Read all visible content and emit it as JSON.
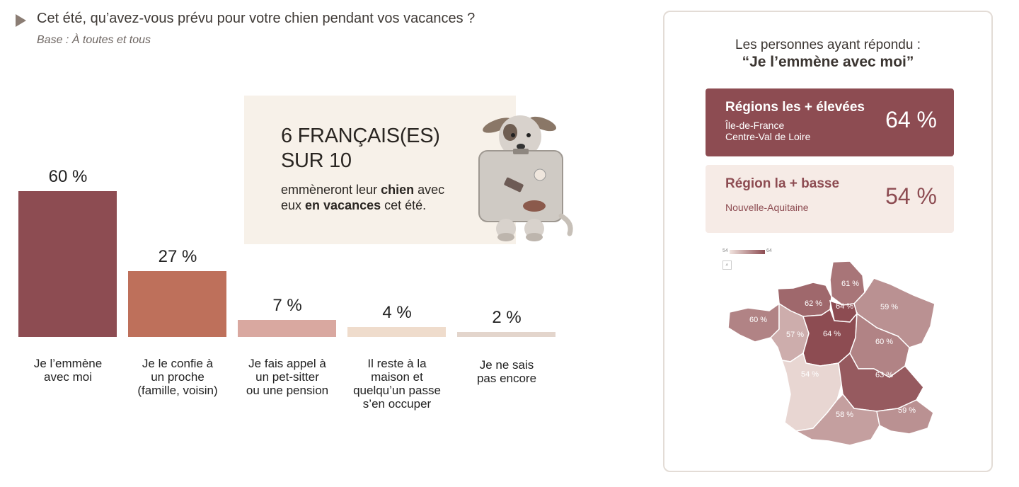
{
  "question": {
    "title": "Cet été, qu’avez-vous prévu pour votre chien pendant vos vacances ?",
    "base": "Base : À toutes et tous"
  },
  "chart_data": {
    "type": "bar",
    "categories": [
      "Je l’emmène\navec moi",
      "Je le confie à\nun proche\n(famille, voisin)",
      "Je fais appel à\nun pet-sitter\nou une pension",
      "Il reste à la\nmaison et\nquelqu’un passe\ns’en occuper",
      "Je ne sais\npas encore"
    ],
    "values": [
      60,
      27,
      7,
      4,
      2
    ],
    "value_labels": [
      "60 %",
      "27 %",
      "7 %",
      "4 %",
      "2 %"
    ],
    "colors": [
      "#8d4c52",
      "#be705b",
      "#d9a8a0",
      "#efdccc",
      "#e3d5cc"
    ],
    "ylim": [
      0,
      60
    ]
  },
  "callout": {
    "big_line1": "6 FRANÇAIS(ES)",
    "big_line2": "SUR 10",
    "small_1": "emmèneront leur ",
    "small_bold1": "chien",
    "small_2": " avec eux ",
    "small_bold2": "en vacances",
    "small_3": " cet été."
  },
  "panel": {
    "heading1": "Les personnes ayant répondu :",
    "heading2": "“Je l’emmène avec moi”",
    "highest": {
      "title": "Régions les + élevées",
      "regions": [
        "Île-de-France",
        "Centre-Val de Loire"
      ],
      "value": "64 %"
    },
    "lowest": {
      "title": "Région la + basse",
      "regions": [
        "Nouvelle-Aquitaine"
      ],
      "value": "54 %"
    },
    "legend": {
      "min": "54",
      "max": "64"
    },
    "search_icon": "magnifier-icon",
    "map_regions": [
      {
        "id": "hdf",
        "value": 61,
        "label": "61 %"
      },
      {
        "id": "normandie",
        "value": 62,
        "label": "62 %"
      },
      {
        "id": "idf",
        "value": 64,
        "label": "64 %"
      },
      {
        "id": "grand-est",
        "value": 59,
        "label": "59 %"
      },
      {
        "id": "bretagne",
        "value": 60,
        "label": "60 %"
      },
      {
        "id": "pdl",
        "value": 57,
        "label": "57 %"
      },
      {
        "id": "cvl",
        "value": 64,
        "label": "64 %"
      },
      {
        "id": "bfc",
        "value": 60,
        "label": "60 %"
      },
      {
        "id": "nouvelle-aquitaine",
        "value": 54,
        "label": "54 %"
      },
      {
        "id": "ara",
        "value": 63,
        "label": "63 %"
      },
      {
        "id": "occitanie",
        "value": 58,
        "label": "58 %"
      },
      {
        "id": "paca",
        "value": 59,
        "label": "59 %"
      }
    ]
  }
}
